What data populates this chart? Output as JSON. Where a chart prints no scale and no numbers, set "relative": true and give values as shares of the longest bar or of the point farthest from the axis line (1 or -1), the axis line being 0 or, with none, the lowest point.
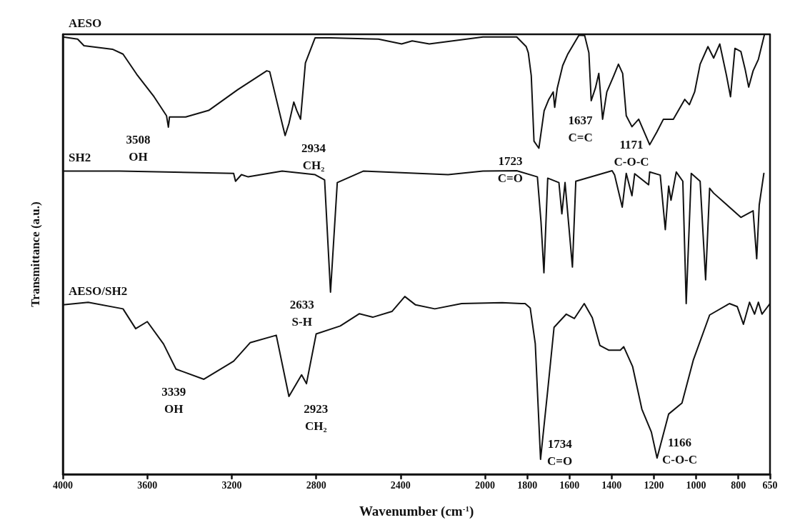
{
  "chart_data": {
    "type": "line",
    "relative": true,
    "xlabel": "Wavenumber (cm$^{-1}$)",
    "ylabel": "Transmittance (a.u.)",
    "xlim": [
      4000,
      650
    ],
    "xticks": [
      4000,
      3600,
      3200,
      2800,
      2400,
      2000,
      1800,
      1600,
      1400,
      1200,
      1000,
      800,
      650
    ],
    "grid": false,
    "legend": false,
    "marker": "none",
    "line_style": "solid",
    "tick_labels": "x",
    "series": [
      {
        "name": "AESO",
        "color": "#111111",
        "x": [
          4000,
          3930,
          3900,
          3765,
          3715,
          3650,
          3568,
          3509,
          3500,
          3495,
          3418,
          3309,
          3172,
          3034,
          3020,
          2961,
          2947,
          2929,
          2906,
          2892,
          2874,
          2851,
          2805,
          2732,
          2505,
          2395,
          2345,
          2264,
          2010,
          1850,
          1805,
          1795,
          1781,
          1768,
          1745,
          1720,
          1698,
          1677,
          1670,
          1658,
          1632,
          1609,
          1555,
          1528,
          1508,
          1497,
          1477,
          1461,
          1443,
          1423,
          1390,
          1368,
          1348,
          1331,
          1304,
          1272,
          1220,
          1186,
          1155,
          1108,
          1054,
          1032,
          1007,
          981,
          944,
          917,
          888,
          856,
          837,
          816,
          788,
          768,
          751,
          730,
          705,
          676
        ],
        "values": [
          0.994,
          0.989,
          0.974,
          0.966,
          0.955,
          0.909,
          0.858,
          0.815,
          0.789,
          0.812,
          0.812,
          0.827,
          0.874,
          0.917,
          0.915,
          0.797,
          0.77,
          0.797,
          0.846,
          0.827,
          0.807,
          0.935,
          0.992,
          0.992,
          0.989,
          0.978,
          0.985,
          0.978,
          0.994,
          0.994,
          0.972,
          0.958,
          0.906,
          0.757,
          0.741,
          0.826,
          0.852,
          0.869,
          0.834,
          0.877,
          0.929,
          0.954,
          0.998,
          0.997,
          0.958,
          0.849,
          0.878,
          0.911,
          0.807,
          0.869,
          0.906,
          0.932,
          0.911,
          0.815,
          0.79,
          0.807,
          0.749,
          0.778,
          0.807,
          0.807,
          0.852,
          0.84,
          0.869,
          0.932,
          0.972,
          0.946,
          0.978,
          0.906,
          0.858,
          0.968,
          0.961,
          0.921,
          0.88,
          0.917,
          0.943,
          1
        ]
      },
      {
        "name": "SH2",
        "color": "#111111",
        "x": [
          4000,
          3730,
          3514,
          3191,
          3182,
          3154,
          3122,
          2961,
          2805,
          2760,
          2732,
          2700,
          2577,
          2175,
          2010,
          1850,
          1752,
          1735,
          1721,
          1703,
          1650,
          1636,
          1621,
          1586,
          1570,
          1398,
          1386,
          1350,
          1331,
          1304,
          1291,
          1225,
          1220,
          1170,
          1146,
          1130,
          1119,
          1094,
          1063,
          1047,
          1023,
          981,
          955,
          936,
          917,
          788,
          730,
          713,
          701,
          679
        ],
        "values": [
          0.689,
          0.689,
          0.687,
          0.684,
          0.666,
          0.681,
          0.676,
          0.689,
          0.681,
          0.669,
          0.414,
          0.663,
          0.689,
          0.681,
          0.689,
          0.69,
          0.676,
          0.575,
          0.458,
          0.673,
          0.663,
          0.592,
          0.663,
          0.471,
          0.666,
          0.69,
          0.68,
          0.607,
          0.684,
          0.633,
          0.683,
          0.658,
          0.687,
          0.68,
          0.556,
          0.655,
          0.623,
          0.687,
          0.666,
          0.388,
          0.684,
          0.666,
          0.442,
          0.65,
          0.639,
          0.584,
          0.599,
          0.49,
          0.612,
          0.684
        ]
      },
      {
        "name": "AESO/SH2",
        "color": "#111111",
        "x": [
          4000,
          3880,
          3715,
          3655,
          3600,
          3523,
          3464,
          3332,
          3191,
          3113,
          2989,
          2929,
          2869,
          2846,
          2800,
          2686,
          2595,
          2532,
          2441,
          2380,
          2329,
          2238,
          2111,
          1919,
          1828,
          1810,
          1786,
          1762,
          1737,
          1703,
          1673,
          1615,
          1577,
          1530,
          1492,
          1456,
          1413,
          1359,
          1343,
          1301,
          1257,
          1212,
          1185,
          1130,
          1067,
          1013,
          936,
          842,
          805,
          776,
          747,
          723,
          705,
          688,
          650
        ],
        "values": [
          0.385,
          0.391,
          0.376,
          0.331,
          0.347,
          0.296,
          0.239,
          0.216,
          0.257,
          0.299,
          0.316,
          0.177,
          0.226,
          0.206,
          0.319,
          0.337,
          0.365,
          0.357,
          0.37,
          0.404,
          0.385,
          0.376,
          0.388,
          0.39,
          0.388,
          0.388,
          0.378,
          0.297,
          0.034,
          0.191,
          0.334,
          0.364,
          0.354,
          0.388,
          0.356,
          0.293,
          0.282,
          0.282,
          0.29,
          0.245,
          0.148,
          0.096,
          0.037,
          0.137,
          0.162,
          0.26,
          0.362,
          0.388,
          0.381,
          0.341,
          0.391,
          0.364,
          0.391,
          0.364,
          0.388
        ]
      }
    ],
    "annotations": [
      {
        "text": "3508\nOH",
        "x": 3508,
        "y": 0.789
      },
      {
        "text": "2934\nCH₂",
        "x": 2934,
        "y": 0.77
      },
      {
        "text": "1723\nC=O",
        "x": 1745,
        "y": 0.741
      },
      {
        "text": "1637\nC=C",
        "x": 1670,
        "y": 0.834
      },
      {
        "text": "1171\nC-O-C",
        "x": 1171,
        "y": 0.778
      },
      {
        "text": "2633\nS-H",
        "x": 2732,
        "y": 0.414
      },
      {
        "text": "3339\nOH",
        "x": 3339,
        "y": 0.216
      },
      {
        "text": "2923\nCH₂",
        "x": 2923,
        "y": 0.177
      },
      {
        "text": "1734\nC=O",
        "x": 1734,
        "y": 0.034
      },
      {
        "text": "1166\nC-O-C",
        "x": 1166,
        "y": 0.037
      }
    ]
  }
}
